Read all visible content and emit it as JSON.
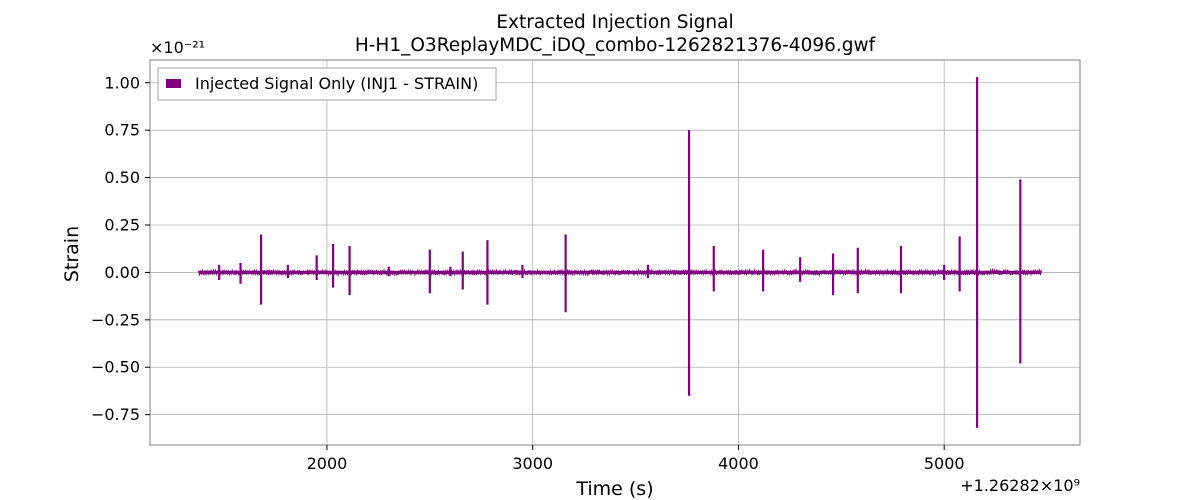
{
  "chart_data": {
    "type": "line",
    "title": "Extracted Injection Signal",
    "subtitle": "H-H1_O3ReplayMDC_iDQ_combo-1262821376-4096.gwf",
    "xlabel": "Time (s)",
    "ylabel": "Strain",
    "y_scale_label": "×10⁻²¹",
    "x_offset_label": "+1.26282×10⁹",
    "xlim": [
      1140,
      5660
    ],
    "ylim": [
      -0.91,
      1.12
    ],
    "x_ticks": [
      2000,
      3000,
      4000,
      5000
    ],
    "x_tick_labels": [
      "2000",
      "3000",
      "4000",
      "5000"
    ],
    "y_ticks": [
      -0.75,
      -0.5,
      -0.25,
      0.0,
      0.25,
      0.5,
      0.75,
      1.0
    ],
    "y_tick_labels": [
      "−0.75",
      "−0.50",
      "−0.25",
      "0.00",
      "0.25",
      "0.50",
      "0.75",
      "1.00"
    ],
    "grid": true,
    "legend_position": "top-left",
    "series": [
      {
        "name": "Injected Signal Only (INJ1 - STRAIN)",
        "color": "#800080",
        "x_range": [
          1376,
          5472
        ],
        "baseline_noise": 0.015,
        "spikes": [
          {
            "x": 1476,
            "max": 0.04,
            "min": -0.04
          },
          {
            "x": 1580,
            "max": 0.05,
            "min": -0.06
          },
          {
            "x": 1680,
            "max": 0.2,
            "min": -0.17
          },
          {
            "x": 1810,
            "max": 0.04,
            "min": -0.03
          },
          {
            "x": 1950,
            "max": 0.09,
            "min": -0.04
          },
          {
            "x": 2030,
            "max": 0.15,
            "min": -0.08
          },
          {
            "x": 2110,
            "max": 0.14,
            "min": -0.12
          },
          {
            "x": 2300,
            "max": 0.03,
            "min": -0.02
          },
          {
            "x": 2500,
            "max": 0.12,
            "min": -0.11
          },
          {
            "x": 2600,
            "max": 0.03,
            "min": -0.02
          },
          {
            "x": 2660,
            "max": 0.11,
            "min": -0.09
          },
          {
            "x": 2780,
            "max": 0.17,
            "min": -0.17
          },
          {
            "x": 2950,
            "max": 0.04,
            "min": -0.03
          },
          {
            "x": 3160,
            "max": 0.2,
            "min": -0.21
          },
          {
            "x": 3560,
            "max": 0.04,
            "min": -0.03
          },
          {
            "x": 3760,
            "max": 0.75,
            "min": -0.65
          },
          {
            "x": 3880,
            "max": 0.14,
            "min": -0.1
          },
          {
            "x": 4120,
            "max": 0.12,
            "min": -0.1
          },
          {
            "x": 4300,
            "max": 0.08,
            "min": -0.05
          },
          {
            "x": 4460,
            "max": 0.1,
            "min": -0.12
          },
          {
            "x": 4580,
            "max": 0.13,
            "min": -0.11
          },
          {
            "x": 4790,
            "max": 0.14,
            "min": -0.11
          },
          {
            "x": 5000,
            "max": 0.04,
            "min": -0.04
          },
          {
            "x": 5075,
            "max": 0.19,
            "min": -0.1
          },
          {
            "x": 5160,
            "max": 1.03,
            "min": -0.82
          },
          {
            "x": 5370,
            "max": 0.49,
            "min": -0.48
          }
        ]
      }
    ]
  }
}
